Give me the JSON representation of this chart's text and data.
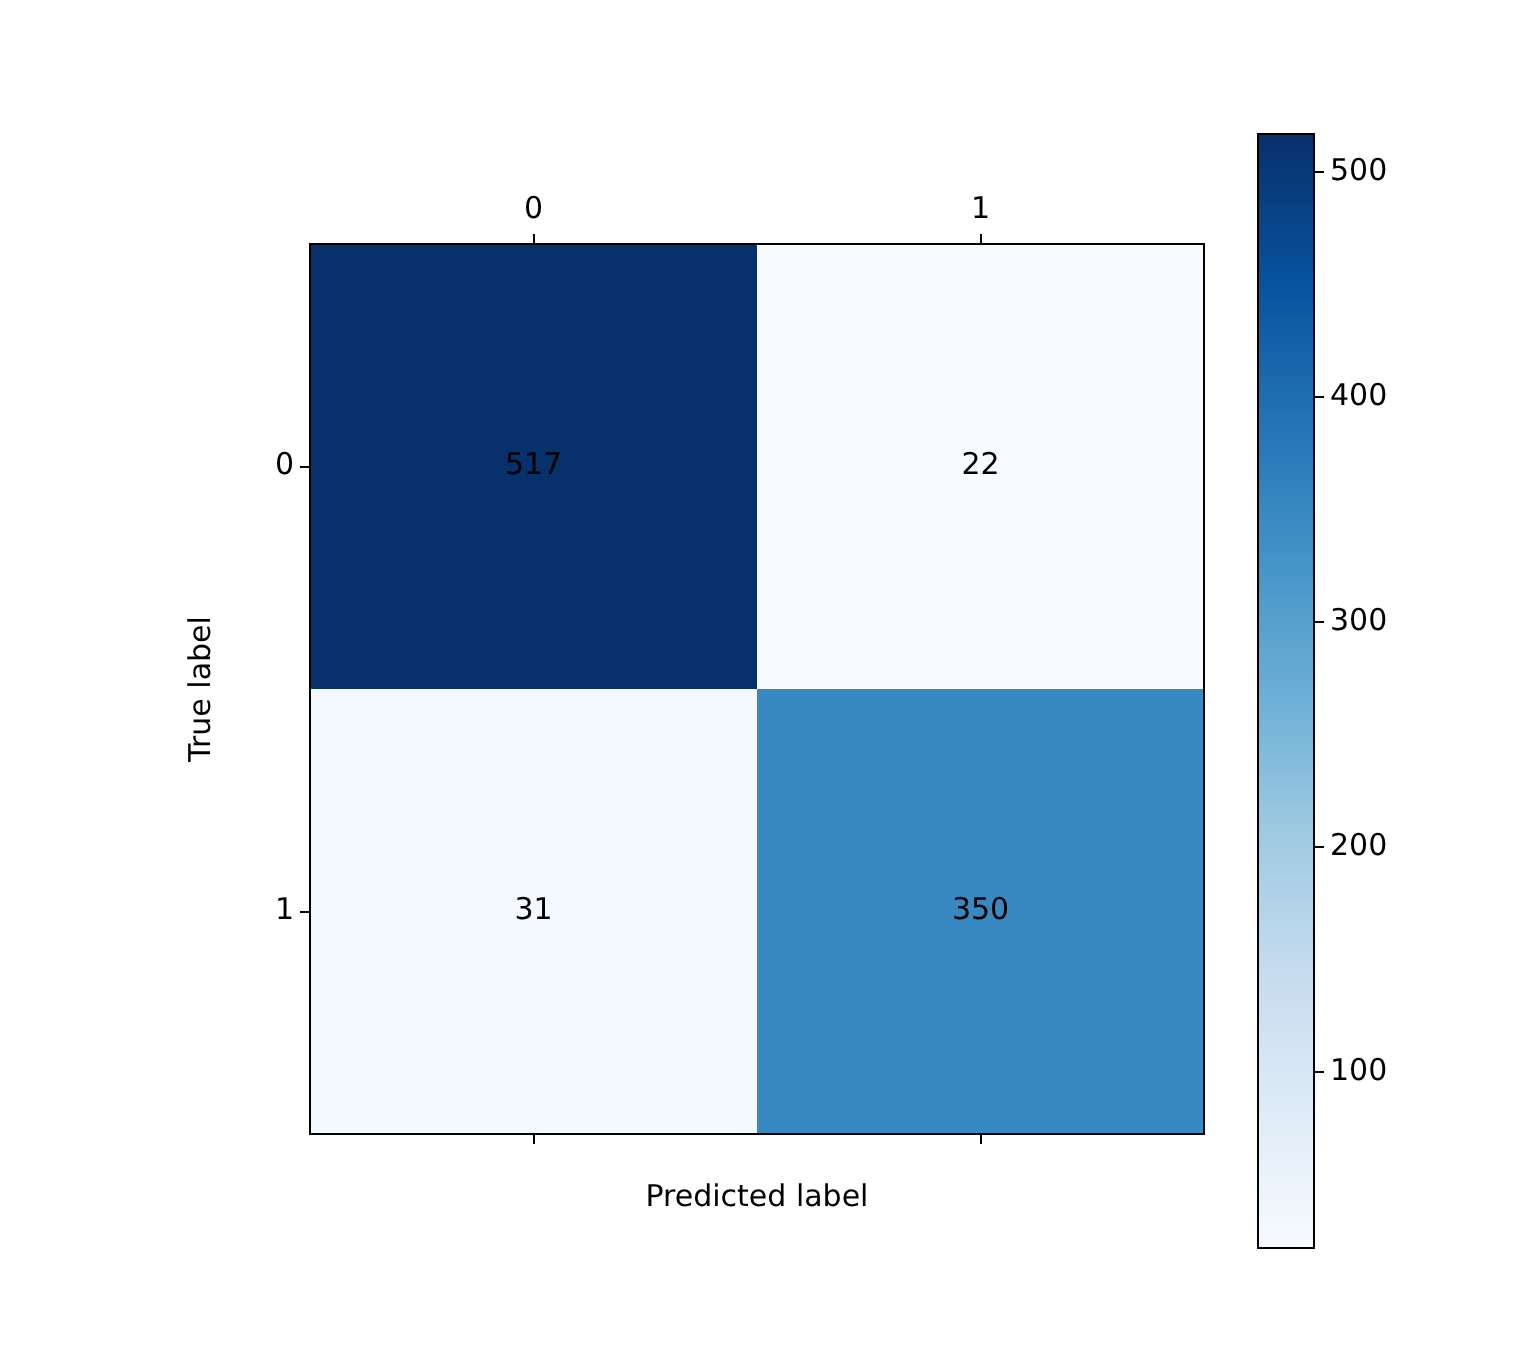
{
  "chart_data": {
    "type": "heatmap",
    "xlabel": "Predicted label",
    "ylabel": "True label",
    "categories": [
      "0",
      "1"
    ],
    "y_categories": [
      "0",
      "1"
    ],
    "cells": [
      [
        517,
        22
      ],
      [
        31,
        350
      ]
    ],
    "clim": [
      22,
      517
    ],
    "cticks": [
      100,
      200,
      300,
      400,
      500
    ],
    "data_labels": true
  }
}
